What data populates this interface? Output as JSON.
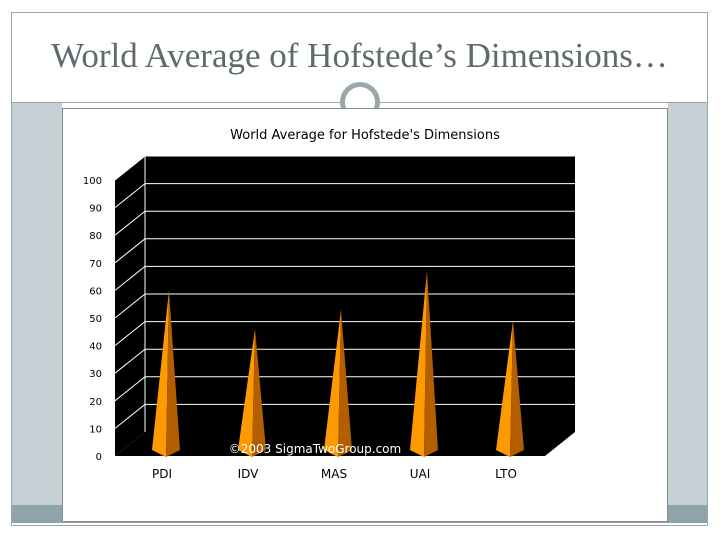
{
  "slide": {
    "title": "World Average of Hofstede’s Dimensions…"
  },
  "chart_data": {
    "type": "bar",
    "style": "3d-pyramid",
    "title": "World Average for Hofstede's Dimensions",
    "categories": [
      "PDI",
      "IDV",
      "MAS",
      "UAI",
      "LTO"
    ],
    "values": [
      59,
      45,
      52,
      66,
      48
    ],
    "ylim": [
      0,
      100
    ],
    "yticks": [
      0,
      10,
      20,
      30,
      40,
      50,
      60,
      70,
      80,
      90,
      100
    ],
    "grid": true,
    "watermark": "©2003 SigmaTwoGroup.com",
    "colors": {
      "plot_background": "#000000",
      "bar": "#ff9900",
      "bar_shade": "#b35f00"
    }
  }
}
